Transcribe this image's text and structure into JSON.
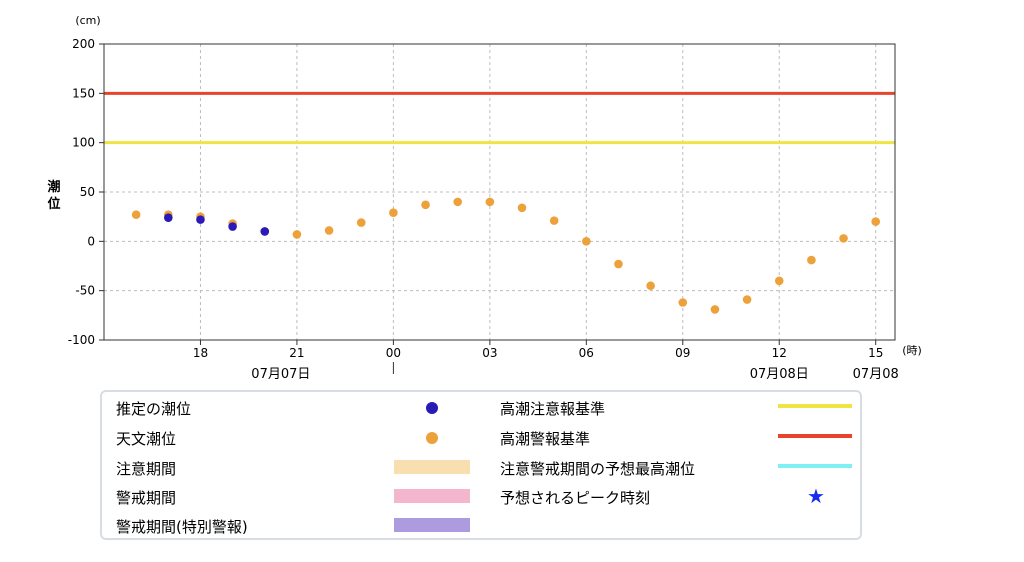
{
  "chart_data": {
    "type": "scatter",
    "title": "",
    "xlabel": "",
    "ylabel": "潮位",
    "y_unit": "(cm)",
    "x_unit": "(時)",
    "ylim": [
      -100,
      200
    ],
    "yticks": [
      200,
      150,
      100,
      50,
      0,
      -50,
      -100
    ],
    "grid": true,
    "x_hour_ticks": [
      {
        "hour": 18,
        "label": "18"
      },
      {
        "hour": 21,
        "label": "21"
      },
      {
        "hour": 24,
        "label": "00"
      },
      {
        "hour": 27,
        "label": "03"
      },
      {
        "hour": 30,
        "label": "06"
      },
      {
        "hour": 33,
        "label": "09"
      },
      {
        "hour": 36,
        "label": "12"
      },
      {
        "hour": 39,
        "label": "15"
      }
    ],
    "date_labels": [
      {
        "hour": 20.5,
        "label": "07月07日"
      },
      {
        "hour": 36,
        "label": "07月08日"
      },
      {
        "hour": 39,
        "label": "07月08"
      }
    ],
    "thresholds": [
      {
        "name": "高潮警報基準",
        "value": 150,
        "color": "#e8442b"
      },
      {
        "name": "高潮注意報基準",
        "value": 100,
        "color": "#f0e442"
      }
    ],
    "series": [
      {
        "name": "天文潮位",
        "color": "#eca13a",
        "points": [
          {
            "hour": 16,
            "value": 27
          },
          {
            "hour": 17,
            "value": 27
          },
          {
            "hour": 18,
            "value": 25
          },
          {
            "hour": 19,
            "value": 18
          },
          {
            "hour": 20,
            "value": 10
          },
          {
            "hour": 21,
            "value": 7
          },
          {
            "hour": 22,
            "value": 11
          },
          {
            "hour": 23,
            "value": 19
          },
          {
            "hour": 24,
            "value": 29
          },
          {
            "hour": 25,
            "value": 37
          },
          {
            "hour": 26,
            "value": 40
          },
          {
            "hour": 27,
            "value": 40
          },
          {
            "hour": 28,
            "value": 34
          },
          {
            "hour": 29,
            "value": 21
          },
          {
            "hour": 30,
            "value": 0
          },
          {
            "hour": 31,
            "value": -23
          },
          {
            "hour": 32,
            "value": -45
          },
          {
            "hour": 33,
            "value": -62
          },
          {
            "hour": 34,
            "value": -69
          },
          {
            "hour": 35,
            "value": -59
          },
          {
            "hour": 36,
            "value": -40
          },
          {
            "hour": 37,
            "value": -19
          },
          {
            "hour": 38,
            "value": 3
          },
          {
            "hour": 39,
            "value": 20
          }
        ]
      },
      {
        "name": "推定の潮位",
        "color": "#2a1bb8",
        "points": [
          {
            "hour": 17,
            "value": 24
          },
          {
            "hour": 18,
            "value": 22
          },
          {
            "hour": 19,
            "value": 15
          },
          {
            "hour": 20,
            "value": 10
          }
        ]
      }
    ]
  },
  "legend": {
    "estimated": "推定の潮位",
    "astronomical": "天文潮位",
    "caution_period": "注意期間",
    "warning_period": "警戒期間",
    "special_warning_period": "警戒期間(特別警報)",
    "caution_standard": "高潮注意報基準",
    "warning_standard": "高潮警報基準",
    "predicted_max": "注意警戒期間の予想最高潮位",
    "peak_time": "予想されるピーク時刻",
    "colors": {
      "estimated": "#2a1bb8",
      "astronomical": "#eca13a",
      "caution_period": "#f9dfb0",
      "warning_period": "#f4b6cc",
      "special_warning_period": "#ad9be0",
      "caution_standard": "#f0e442",
      "warning_standard": "#e8442b",
      "predicted_max": "#7ff0f5",
      "peak_time": "#1a2bf0"
    },
    "star_glyph": "★"
  }
}
